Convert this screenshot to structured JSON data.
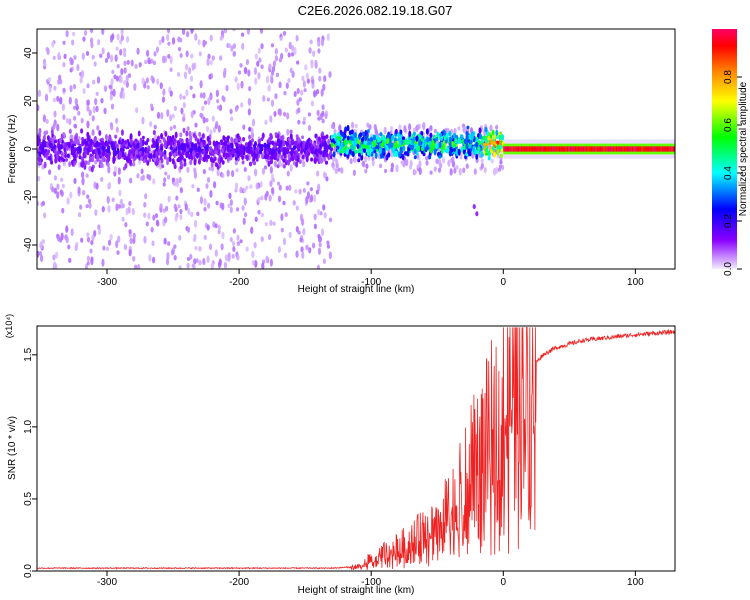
{
  "title": "C2E6.2026.082.19.18.G07",
  "chart_data": [
    {
      "type": "heatmap",
      "panel": "top",
      "xlabel": "Height of straight line (km)",
      "ylabel": "Frequency (Hz)",
      "xlim": [
        -353,
        130
      ],
      "ylim": [
        -50,
        50
      ],
      "xticks": [
        -300,
        -200,
        -100,
        0,
        100
      ],
      "yticks": [
        -40,
        -20,
        0,
        20,
        40
      ],
      "colorbar": {
        "label": "Normalized spectral amplitude",
        "range": [
          0,
          1
        ],
        "ticks": [
          0.0,
          0.2,
          0.4,
          0.6,
          0.8
        ],
        "colormap": [
          "#f0e6ff",
          "#7b00ff",
          "#0000ff",
          "#00ffff",
          "#00ff00",
          "#ffff00",
          "#ff8800",
          "#ff0000",
          "#ff0066"
        ]
      },
      "regions": [
        {
          "x": [
            -353,
            -130
          ],
          "freq_center": 0,
          "band_halfwidth": 8,
          "noise_spread": 50,
          "amplitude": 0.15
        },
        {
          "x": [
            -130,
            0
          ],
          "freq_center": 2,
          "band_halfwidth": 6,
          "noise_spread": 10,
          "amplitude": 0.45
        },
        {
          "x": [
            0,
            130
          ],
          "freq_center": 0,
          "band_halfwidth": 2,
          "noise_spread": 4,
          "amplitude": 0.95
        }
      ]
    },
    {
      "type": "line",
      "panel": "bottom",
      "xlabel": "Height of straight line (km)",
      "ylabel": "SNR (10 * v/v)",
      "yscale_label": "(x10⁴)",
      "xlim": [
        -353,
        130
      ],
      "ylim": [
        0,
        1.7
      ],
      "xticks": [
        -300,
        -200,
        -100,
        0,
        100
      ],
      "yticks": [
        "0.0",
        "0.5",
        "1.0",
        "1.5"
      ],
      "series": [
        {
          "name": "SNR",
          "color": "#ee2222",
          "x": [
            -353,
            -300,
            -200,
            -130,
            -110,
            -100,
            -80,
            -60,
            -40,
            -30,
            -20,
            -10,
            0,
            10,
            20,
            30,
            40,
            60,
            80,
            100,
            130
          ],
          "values": [
            0.02,
            0.02,
            0.02,
            0.02,
            0.03,
            0.08,
            0.15,
            0.25,
            0.4,
            0.55,
            0.75,
            0.9,
            1.05,
            1.25,
            1.4,
            1.5,
            1.55,
            1.6,
            1.62,
            1.64,
            1.66
          ]
        }
      ]
    }
  ]
}
